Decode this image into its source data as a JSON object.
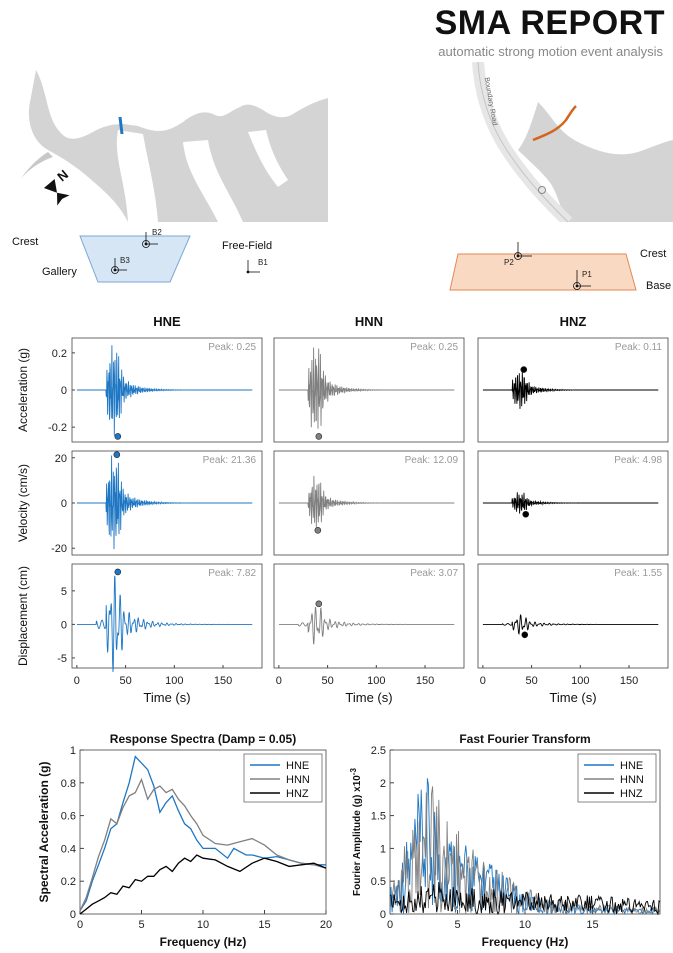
{
  "header": {
    "title": "SMA REPORT",
    "subtitle": "automatic strong motion event analysis"
  },
  "maps": {
    "left": {
      "north_label": "N"
    },
    "right": {
      "road_label": "Boundary Road"
    }
  },
  "sections": {
    "left": {
      "crest_label": "Crest",
      "gallery_label": "Gallery",
      "freefield_label": "Free-Field",
      "stations": [
        "B2",
        "B3",
        "B1"
      ]
    },
    "right": {
      "crest_label": "Crest",
      "base_label": "Base",
      "stations": [
        "P2",
        "P1"
      ]
    }
  },
  "colors": {
    "HNE": "#1f77c4",
    "HNN": "#808080",
    "HNZ": "#000000",
    "left_section_fill": "#d6e6f5",
    "right_section_fill": "#f9d9c2",
    "crest_marker_left": "#1f77c4",
    "crest_marker_right": "#d4651e"
  },
  "chart_data": [
    {
      "type": "line",
      "panel": "waveforms",
      "columns": [
        "HNE",
        "HNN",
        "HNZ"
      ],
      "rows": [
        {
          "ylabel": "Acceleration (g)",
          "ylim": [
            -0.28,
            0.28
          ],
          "yticks": [
            "0.2",
            "0",
            "-0.2"
          ],
          "ytick_values": [
            0.2,
            0,
            -0.2
          ],
          "peaks": [
            "Peak: 0.25",
            "Peak: 0.25",
            "Peak: 0.11"
          ],
          "peak_values": [
            0.25,
            0.25,
            0.11
          ],
          "peak_markers": [
            [
              42,
              -0.25
            ],
            [
              41,
              -0.25
            ],
            [
              42,
              0.11
            ]
          ]
        },
        {
          "ylabel": "Velocity (cm/s)",
          "ylim": [
            -23,
            23
          ],
          "yticks": [
            "20",
            "0",
            "-20"
          ],
          "ytick_values": [
            20,
            0,
            -20
          ],
          "peaks": [
            "Peak: 21.36",
            "Peak: 12.09",
            "Peak: 4.98"
          ],
          "peak_values": [
            21.36,
            12.09,
            4.98
          ],
          "peak_markers": [
            [
              41,
              21.36
            ],
            [
              40,
              -12.09
            ],
            [
              44,
              -4.98
            ]
          ]
        },
        {
          "ylabel": "Displacement (cm)",
          "ylim": [
            -6.5,
            9
          ],
          "yticks": [
            "5",
            "0",
            "-5"
          ],
          "ytick_values": [
            5,
            0,
            -5
          ],
          "peaks": [
            "Peak: 7.82",
            "Peak: 3.07",
            "Peak: 1.55"
          ],
          "peak_values": [
            7.82,
            3.07,
            1.55
          ],
          "peak_markers": [
            [
              42,
              7.82
            ],
            [
              41,
              3.07
            ],
            [
              43,
              -1.55
            ]
          ]
        }
      ],
      "xlabel": "Time (s)",
      "xlim": [
        -5,
        190
      ],
      "xticks": [
        "0",
        "50",
        "100",
        "150"
      ],
      "xtick_values": [
        0,
        50,
        100,
        150
      ],
      "signal_end": 180
    },
    {
      "type": "line",
      "title": "Response Spectra (Damp = 0.05)",
      "xlabel": "Frequency (Hz)",
      "ylabel": "Spectral Acceleration (g)",
      "xlim": [
        0,
        20
      ],
      "ylim": [
        0,
        1
      ],
      "xticks": [
        "0",
        "5",
        "10",
        "15",
        "20"
      ],
      "xtick_values": [
        0,
        5,
        10,
        15,
        20
      ],
      "yticks": [
        "0",
        "0.2",
        "0.4",
        "0.6",
        "0.8",
        "1"
      ],
      "ytick_values": [
        0,
        0.2,
        0.4,
        0.6,
        0.8,
        1
      ],
      "legend": "top-right",
      "series": [
        {
          "name": "HNE",
          "x": [
            0,
            0.5,
            1,
            1.5,
            2,
            2.5,
            3,
            3.5,
            4,
            4.5,
            5,
            5.5,
            6,
            6.5,
            7,
            7.5,
            8,
            8.5,
            9,
            9.5,
            10,
            11,
            12,
            12.5,
            13,
            13.5,
            14,
            15,
            16,
            17,
            18,
            19,
            20
          ],
          "y": [
            0.02,
            0.08,
            0.2,
            0.3,
            0.4,
            0.52,
            0.55,
            0.68,
            0.8,
            0.96,
            0.92,
            0.88,
            0.78,
            0.62,
            0.68,
            0.72,
            0.63,
            0.55,
            0.52,
            0.45,
            0.4,
            0.4,
            0.34,
            0.4,
            0.38,
            0.36,
            0.36,
            0.34,
            0.35,
            0.33,
            0.31,
            0.3,
            0.3
          ]
        },
        {
          "name": "HNN",
          "x": [
            0,
            0.5,
            1,
            1.5,
            2,
            2.5,
            3,
            3.5,
            4,
            4.5,
            5,
            5.5,
            6,
            6.5,
            7,
            7.5,
            8,
            8.5,
            9,
            9.5,
            10,
            11,
            12,
            13,
            14,
            15,
            16,
            17,
            18,
            19,
            20
          ],
          "y": [
            0.02,
            0.1,
            0.22,
            0.35,
            0.45,
            0.58,
            0.55,
            0.65,
            0.72,
            0.74,
            0.82,
            0.7,
            0.76,
            0.78,
            0.74,
            0.76,
            0.7,
            0.66,
            0.6,
            0.55,
            0.48,
            0.43,
            0.42,
            0.44,
            0.46,
            0.42,
            0.36,
            0.33,
            0.31,
            0.3,
            0.28
          ]
        },
        {
          "name": "HNZ",
          "x": [
            0,
            0.5,
            1,
            1.5,
            2,
            2.5,
            3,
            3.5,
            4,
            4.5,
            5,
            5.5,
            6,
            6.5,
            7,
            7.5,
            8,
            8.5,
            9,
            9.5,
            10,
            11,
            12,
            13,
            14,
            15,
            16,
            17,
            18,
            19,
            20
          ],
          "y": [
            0.0,
            0.03,
            0.06,
            0.08,
            0.1,
            0.13,
            0.12,
            0.17,
            0.16,
            0.21,
            0.2,
            0.23,
            0.23,
            0.27,
            0.29,
            0.26,
            0.31,
            0.34,
            0.32,
            0.36,
            0.34,
            0.33,
            0.29,
            0.26,
            0.31,
            0.34,
            0.32,
            0.29,
            0.3,
            0.31,
            0.28
          ]
        }
      ]
    },
    {
      "type": "line",
      "title": "Fast Fourier Transform",
      "xlabel": "Frequency (Hz)",
      "ylabel": "Fourier Amplitude (g) x10",
      "ylabel_exponent": "-3",
      "xlim": [
        0,
        20
      ],
      "ylim": [
        0,
        2.5
      ],
      "xticks": [
        "0",
        "5",
        "10",
        "15"
      ],
      "xtick_values": [
        0,
        5,
        10,
        15
      ],
      "yticks": [
        "0",
        "0.5",
        "1",
        "1.5",
        "2",
        "2.5"
      ],
      "ytick_values": [
        0,
        0.5,
        1,
        1.5,
        2,
        2.5
      ],
      "legend": "top-right",
      "series": [
        {
          "name": "HNE",
          "x": [
            0,
            1,
            2,
            3,
            4,
            5,
            6,
            7,
            8,
            9,
            10,
            12,
            15,
            20
          ],
          "y": [
            0.4,
            1.0,
            1.8,
            2.2,
            1.5,
            1.2,
            1.0,
            0.9,
            0.7,
            0.5,
            0.35,
            0.2,
            0.12,
            0.1
          ]
        },
        {
          "name": "HNN",
          "x": [
            0,
            1,
            2,
            3,
            4,
            5,
            6,
            7,
            8,
            9,
            10,
            12,
            15,
            20
          ],
          "y": [
            0.5,
            1.2,
            1.4,
            2.4,
            1.6,
            1.4,
            1.1,
            0.95,
            0.75,
            0.55,
            0.4,
            0.25,
            0.15,
            0.1
          ]
        },
        {
          "name": "HNZ",
          "x": [
            0,
            1,
            2,
            3,
            4,
            5,
            6,
            7,
            8,
            9,
            10,
            12,
            15,
            20
          ],
          "y": [
            0.3,
            0.35,
            0.4,
            0.5,
            0.5,
            0.45,
            0.45,
            0.4,
            0.38,
            0.35,
            0.35,
            0.32,
            0.28,
            0.22
          ]
        }
      ]
    }
  ]
}
